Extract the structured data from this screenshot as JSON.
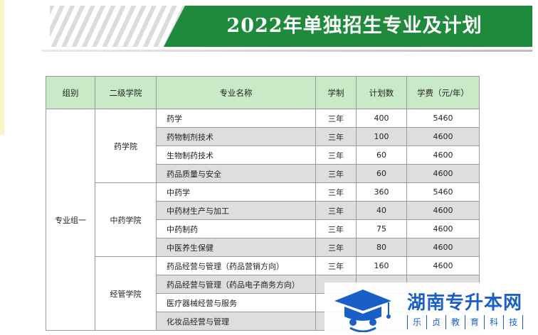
{
  "header": {
    "title": "2022年单独招生专业及计划"
  },
  "table": {
    "headers": [
      "组别",
      "二级学院",
      "专业名称",
      "学制",
      "计划数",
      "学费（元/年）"
    ],
    "group": "专业组一",
    "colleges": [
      {
        "name": "药学院",
        "rows": [
          {
            "major": "药学",
            "years": "三年",
            "plan": "400",
            "fee": "5460"
          },
          {
            "major": "药物制剂技术",
            "years": "三年",
            "plan": "100",
            "fee": "4600"
          },
          {
            "major": "生物制药技术",
            "years": "三年",
            "plan": "60",
            "fee": "4600"
          },
          {
            "major": "药品质量与安全",
            "years": "三年",
            "plan": "60",
            "fee": "4600"
          }
        ]
      },
      {
        "name": "中药学院",
        "rows": [
          {
            "major": "中药学",
            "years": "三年",
            "plan": "360",
            "fee": "5460"
          },
          {
            "major": "中药材生产与加工",
            "years": "三年",
            "plan": "40",
            "fee": "4600"
          },
          {
            "major": "中药制药",
            "years": "三年",
            "plan": "75",
            "fee": "4600"
          },
          {
            "major": "中医养生保健",
            "years": "三年",
            "plan": "80",
            "fee": "4600"
          }
        ]
      },
      {
        "name": "经管学院",
        "rows": [
          {
            "major": "药品经营与管理（药品营销方向）",
            "years": "三年",
            "plan": "160",
            "fee": "4600"
          },
          {
            "major": "药品经营与管理（药品电子商务方向）",
            "years": "",
            "plan": "",
            "fee": ""
          },
          {
            "major": "医疗器械经营与服务",
            "years": "",
            "plan": "",
            "fee": ""
          },
          {
            "major": "化妆品经营与管理",
            "years": "",
            "plan": "",
            "fee": ""
          }
        ]
      }
    ]
  },
  "watermark": {
    "name": "湖南专升本网",
    "tagline": [
      "乐",
      "贞",
      "教",
      "育",
      "科",
      "技"
    ]
  },
  "colors": {
    "banner_green": "#1e8a3c",
    "header_row": "#c9eac7",
    "shade_row": "#dedede",
    "logo_blue": "#1a5fc8"
  }
}
